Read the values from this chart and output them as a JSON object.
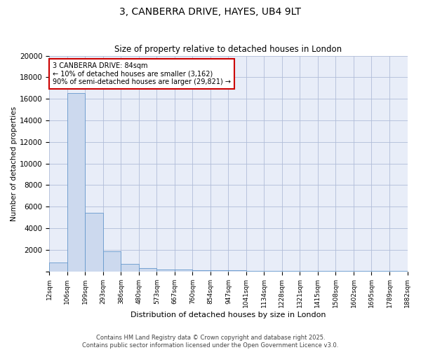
{
  "title_line1": "3, CANBERRA DRIVE, HAYES, UB4 9LT",
  "title_line2": "Size of property relative to detached houses in London",
  "xlabel": "Distribution of detached houses by size in London",
  "ylabel": "Number of detached properties",
  "bar_color": "#ccd9ee",
  "bar_edge_color": "#6699cc",
  "background_color": "#ffffff",
  "plot_bg_color": "#e8edf8",
  "grid_color": "#b0bcd8",
  "annotation_text": "3 CANBERRA DRIVE: 84sqm\n← 10% of detached houses are smaller (3,162)\n90% of semi-detached houses are larger (29,821) →",
  "annotation_box_color": "#ffffff",
  "annotation_box_edge_color": "#cc0000",
  "bin_labels": [
    "12sqm",
    "106sqm",
    "199sqm",
    "293sqm",
    "386sqm",
    "480sqm",
    "573sqm",
    "667sqm",
    "760sqm",
    "854sqm",
    "947sqm",
    "1041sqm",
    "1134sqm",
    "1228sqm",
    "1321sqm",
    "1415sqm",
    "1508sqm",
    "1602sqm",
    "1695sqm",
    "1789sqm",
    "1882sqm"
  ],
  "bar_heights": [
    820,
    16500,
    5400,
    1850,
    700,
    310,
    200,
    150,
    120,
    100,
    80,
    60,
    50,
    40,
    30,
    20,
    15,
    12,
    10,
    8
  ],
  "ylim": [
    0,
    20000
  ],
  "yticks": [
    0,
    2000,
    4000,
    6000,
    8000,
    10000,
    12000,
    14000,
    16000,
    18000,
    20000
  ],
  "footer_line1": "Contains HM Land Registry data © Crown copyright and database right 2025.",
  "footer_line2": "Contains public sector information licensed under the Open Government Licence v3.0."
}
